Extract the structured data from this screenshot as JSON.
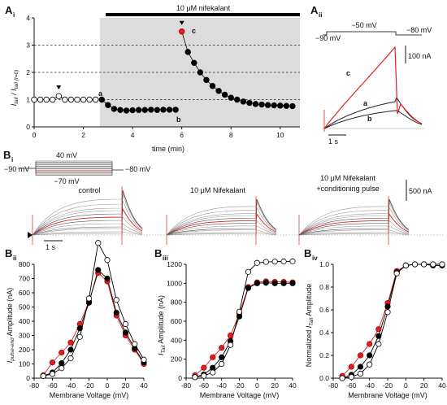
{
  "panel_labels": {
    "ai": {
      "main": "A",
      "sub": "i"
    },
    "aii": {
      "main": "A",
      "sub": "ii"
    },
    "bi": {
      "main": "B",
      "sub": "i"
    },
    "bii": {
      "main": "B",
      "sub": "ii"
    },
    "biii": {
      "main": "B",
      "sub": "iii"
    },
    "biv": {
      "main": "B",
      "sub": "iv"
    }
  },
  "panel_ai": {
    "drug_bar_label": "10 μM nifekalant",
    "ylabel": "I_tail / I_tail (t=0)",
    "xlabel": "time (min)",
    "point_letters": [
      "a",
      "b",
      "c"
    ]
  },
  "panel_aii": {
    "protocol_labels": [
      "−50 mV",
      "−90 mV",
      "−80 mV"
    ],
    "scale_current": "100 nA",
    "scale_time": "1 s",
    "trace_letters": [
      "c",
      "a",
      "b"
    ],
    "colors": {
      "a": "#222222",
      "b": "#222222",
      "c": "#e02020"
    }
  },
  "panel_bi": {
    "protocol_labels": [
      "40 mV",
      "−90 mV",
      "−70 mV",
      "−80 mV"
    ],
    "condition_labels": [
      "control",
      "10 μM Nifekalant",
      "10 μM Nifekalant",
      "+conditioning pulse"
    ],
    "scale_current": "500 nA",
    "scale_time": "1 s"
  },
  "legend_colors": {
    "control": "#ffffff",
    "nifekalant": "#000000",
    "conditioning": "#e02020"
  },
  "chart_data": [
    {
      "type": "scatter",
      "panel": "Ai",
      "xlabel": "time (min)",
      "ylabel": "I_tail / I_tail (t=0)",
      "xlim": [
        0,
        10.8
      ],
      "ylim": [
        0,
        4
      ],
      "xticks": [
        0,
        2,
        4,
        6,
        8,
        10
      ],
      "yticks": [
        0,
        1,
        2,
        3,
        4
      ],
      "dashed_gridlines_y": [
        1,
        2,
        3
      ],
      "shaded_x_range": [
        2.67,
        10.8
      ],
      "series": [
        {
          "marker": "open",
          "x": [
            0,
            0.25,
            0.5,
            0.75,
            1.0,
            1.25,
            1.5,
            1.75,
            2.0,
            2.25,
            2.5
          ],
          "y": [
            1.0,
            1.0,
            1.0,
            1.0,
            1.13,
            1.0,
            1.0,
            1.0,
            1.0,
            1.0,
            1.0
          ]
        },
        {
          "marker": "filled",
          "x": [
            2.75,
            3.0,
            3.25,
            3.5,
            3.75,
            4.0,
            4.25,
            4.5,
            4.75,
            5.0,
            5.25,
            5.5,
            5.75
          ],
          "y": [
            1.0,
            0.8,
            0.66,
            0.62,
            0.6,
            0.61,
            0.62,
            0.62,
            0.63,
            0.62,
            0.63,
            0.63,
            0.63
          ]
        },
        {
          "marker": "red",
          "x": [
            6.0
          ],
          "y": [
            3.5
          ]
        },
        {
          "marker": "filled",
          "x": [
            6.25,
            6.5,
            6.75,
            7.0,
            7.25,
            7.5,
            7.75,
            8.0,
            8.25,
            8.5,
            8.75,
            9.0,
            9.25,
            9.5,
            9.75,
            10.0,
            10.25,
            10.5
          ],
          "y": [
            2.75,
            2.35,
            2.0,
            1.72,
            1.5,
            1.32,
            1.18,
            1.07,
            1.0,
            0.93,
            0.88,
            0.84,
            0.82,
            0.8,
            0.79,
            0.78,
            0.77,
            0.76
          ]
        }
      ],
      "arrow_markers_x": [
        1.0,
        6.0
      ]
    },
    {
      "type": "line",
      "panel": "Bii",
      "xlabel": "Membrane Voltage (mV)",
      "ylabel": "I_pulse-end Amplitude (nA)",
      "xlim": [
        -80,
        40
      ],
      "ylim": [
        0,
        800
      ],
      "xticks": [
        -80,
        -60,
        -40,
        -20,
        0,
        20,
        40
      ],
      "yticks": [
        0,
        100,
        200,
        300,
        400,
        500,
        600,
        700,
        800
      ],
      "x": [
        -70,
        -60,
        -50,
        -40,
        -30,
        -20,
        -10,
        0,
        10,
        20,
        30,
        40
      ],
      "series": [
        {
          "name": "control",
          "marker": "open",
          "values": [
            15,
            30,
            70,
            140,
            290,
            560,
            950,
            830,
            550,
            380,
            240,
            130
          ]
        },
        {
          "name": "10 μM Nifekalant",
          "marker": "filled",
          "values": [
            15,
            40,
            105,
            200,
            350,
            530,
            760,
            700,
            460,
            320,
            210,
            110
          ]
        },
        {
          "name": "+conditioning pulse",
          "marker": "red",
          "values": [
            20,
            110,
            180,
            250,
            380,
            540,
            740,
            680,
            440,
            300,
            200,
            100
          ]
        }
      ]
    },
    {
      "type": "line",
      "panel": "Biii",
      "xlabel": "Membrane Voltage (mV)",
      "ylabel": "I_Tail Amplitude (nA)",
      "xlim": [
        -80,
        40
      ],
      "ylim": [
        0,
        1200
      ],
      "xticks": [
        -80,
        -60,
        -40,
        -20,
        0,
        20,
        40
      ],
      "yticks": [
        0,
        200,
        400,
        600,
        800,
        1000,
        1200
      ],
      "x": [
        -70,
        -60,
        -50,
        -40,
        -30,
        -20,
        -10,
        0,
        10,
        20,
        30,
        40
      ],
      "series": [
        {
          "name": "control",
          "marker": "open",
          "values": [
            10,
            25,
            60,
            150,
            350,
            700,
            1120,
            1215,
            1225,
            1228,
            1230,
            1232
          ]
        },
        {
          "name": "10 μM Nifekalant",
          "marker": "filled",
          "values": [
            10,
            40,
            110,
            220,
            390,
            650,
            950,
            1000,
            1005,
            1000,
            1000,
            1000
          ]
        },
        {
          "name": "+conditioning pulse",
          "marker": "red",
          "values": [
            30,
            110,
            220,
            320,
            450,
            680,
            960,
            1010,
            1020,
            1015,
            1015,
            1010
          ]
        }
      ]
    },
    {
      "type": "line",
      "panel": "Biv",
      "xlabel": "Membrane Voltage (mV)",
      "ylabel": "Normalized I_Tail Amplitude",
      "xlim": [
        -80,
        40
      ],
      "ylim": [
        0,
        1.0
      ],
      "xticks": [
        -80,
        -60,
        -40,
        -20,
        0,
        20,
        40
      ],
      "yticks": [
        0,
        0.2,
        0.4,
        0.6,
        0.8,
        1.0
      ],
      "x": [
        -70,
        -60,
        -50,
        -40,
        -30,
        -20,
        -10,
        0,
        10,
        20,
        30,
        40
      ],
      "series": [
        {
          "name": "control",
          "marker": "open",
          "values": [
            0.0,
            0.01,
            0.04,
            0.12,
            0.3,
            0.58,
            0.92,
            0.99,
            1.0,
            1.0,
            1.0,
            1.0
          ]
        },
        {
          "name": "10 μM Nifekalant",
          "marker": "filled",
          "values": [
            0.0,
            0.03,
            0.1,
            0.2,
            0.37,
            0.63,
            0.93,
            0.99,
            1.0,
            1.0,
            0.99,
            0.99
          ]
        },
        {
          "name": "+conditioning pulse",
          "marker": "red",
          "values": [
            0.02,
            0.1,
            0.2,
            0.3,
            0.43,
            0.66,
            0.94,
            0.99,
            1.0,
            1.0,
            1.0,
            1.0
          ]
        }
      ]
    }
  ]
}
